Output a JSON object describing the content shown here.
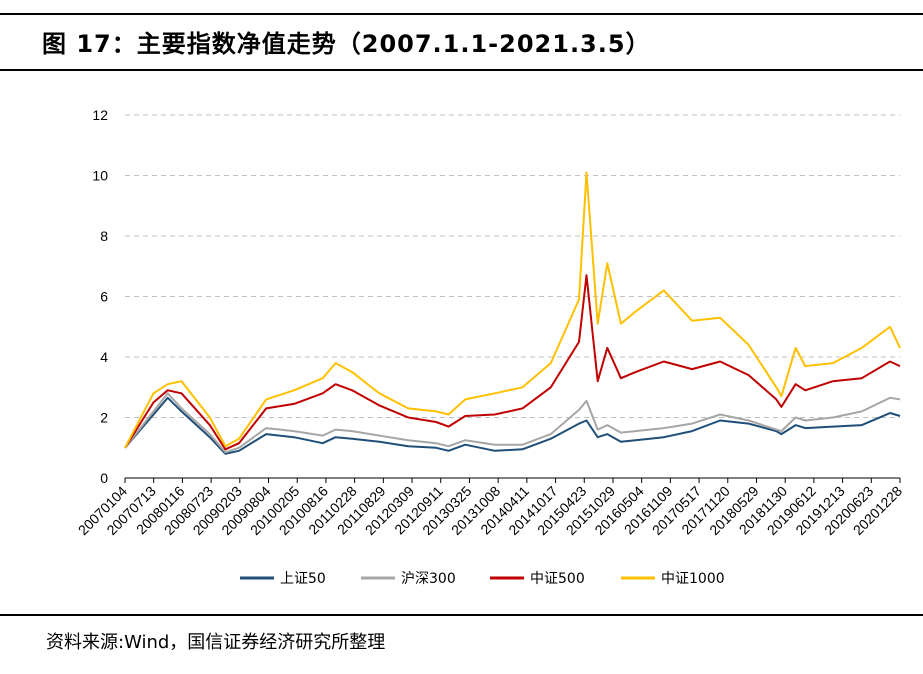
{
  "figure": {
    "title": "图 17：主要指数净值走势（2007.1.1-2021.3.5）",
    "source": "资料来源:Wind，国信证券经济研究所整理"
  },
  "chart_data": {
    "type": "line",
    "title": "主要指数净值走势（2007.1.1-2021.3.5）",
    "xlabel": "",
    "ylabel": "",
    "ylim": [
      0,
      12
    ],
    "yticks": [
      0,
      2,
      4,
      6,
      8,
      10,
      12
    ],
    "grid": "horizontal dashed",
    "legend_position": "bottom",
    "x_tick_labels": [
      "20070104",
      "20070713",
      "20080116",
      "20080723",
      "20090203",
      "20090804",
      "20100205",
      "20100816",
      "20110228",
      "20110829",
      "20120309",
      "20120911",
      "20130325",
      "20131008",
      "20140411",
      "20141017",
      "20150423",
      "20151029",
      "20160504",
      "20161109",
      "20170517",
      "20171120",
      "20180529",
      "20181130",
      "20190612",
      "20191213",
      "20200623",
      "20201228"
    ],
    "x": [
      "2007-01-04",
      "2007-07-13",
      "2007-10-16",
      "2008-01-16",
      "2008-07-23",
      "2008-11-04",
      "2009-02-03",
      "2009-08-04",
      "2010-02-05",
      "2010-08-16",
      "2010-11-10",
      "2011-02-28",
      "2011-08-29",
      "2012-03-09",
      "2012-09-11",
      "2012-12-03",
      "2013-03-25",
      "2013-10-08",
      "2014-04-11",
      "2014-10-17",
      "2015-04-23",
      "2015-06-12",
      "2015-08-26",
      "2015-10-29",
      "2016-01-28",
      "2016-05-04",
      "2016-11-09",
      "2017-05-17",
      "2017-11-20",
      "2018-05-29",
      "2018-11-30",
      "2019-01-03",
      "2019-04-08",
      "2019-06-12",
      "2019-12-13",
      "2020-06-23",
      "2020-12-28",
      "2021-03-05"
    ],
    "series": [
      {
        "name": "上证50",
        "color": "#1F4E79",
        "values": [
          1.0,
          2.1,
          2.65,
          2.2,
          1.35,
          0.8,
          0.9,
          1.45,
          1.35,
          1.15,
          1.35,
          1.3,
          1.2,
          1.05,
          1.0,
          0.9,
          1.1,
          0.9,
          0.95,
          1.3,
          1.8,
          1.9,
          1.35,
          1.45,
          1.2,
          1.25,
          1.35,
          1.55,
          1.9,
          1.8,
          1.55,
          1.45,
          1.75,
          1.65,
          1.7,
          1.75,
          2.15,
          2.05
        ]
      },
      {
        "name": "沪深300",
        "color": "#A6A6A6",
        "values": [
          1.0,
          2.2,
          2.8,
          2.3,
          1.45,
          0.85,
          1.0,
          1.65,
          1.55,
          1.4,
          1.6,
          1.55,
          1.4,
          1.25,
          1.15,
          1.05,
          1.25,
          1.1,
          1.1,
          1.45,
          2.25,
          2.55,
          1.6,
          1.75,
          1.5,
          1.55,
          1.65,
          1.8,
          2.1,
          1.9,
          1.6,
          1.55,
          2.0,
          1.9,
          2.0,
          2.2,
          2.65,
          2.6
        ]
      },
      {
        "name": "中证500",
        "color": "#C00000",
        "values": [
          1.0,
          2.5,
          2.9,
          2.8,
          1.75,
          0.95,
          1.15,
          2.3,
          2.45,
          2.8,
          3.1,
          2.9,
          2.4,
          2.0,
          1.85,
          1.7,
          2.05,
          2.1,
          2.3,
          3.0,
          4.5,
          6.7,
          3.2,
          4.3,
          3.3,
          3.5,
          3.85,
          3.6,
          3.85,
          3.4,
          2.6,
          2.35,
          3.1,
          2.9,
          3.2,
          3.3,
          3.85,
          3.7
        ]
      },
      {
        "name": "中证1000",
        "color": "#FFC000",
        "values": [
          1.0,
          2.8,
          3.1,
          3.2,
          2.0,
          1.05,
          1.3,
          2.6,
          2.9,
          3.3,
          3.8,
          3.5,
          2.8,
          2.3,
          2.2,
          2.1,
          2.6,
          2.8,
          3.0,
          3.8,
          5.9,
          10.1,
          5.1,
          7.1,
          5.1,
          5.5,
          6.2,
          5.2,
          5.3,
          4.4,
          3.0,
          2.7,
          4.3,
          3.7,
          3.8,
          4.3,
          5.0,
          4.3
        ]
      }
    ]
  }
}
